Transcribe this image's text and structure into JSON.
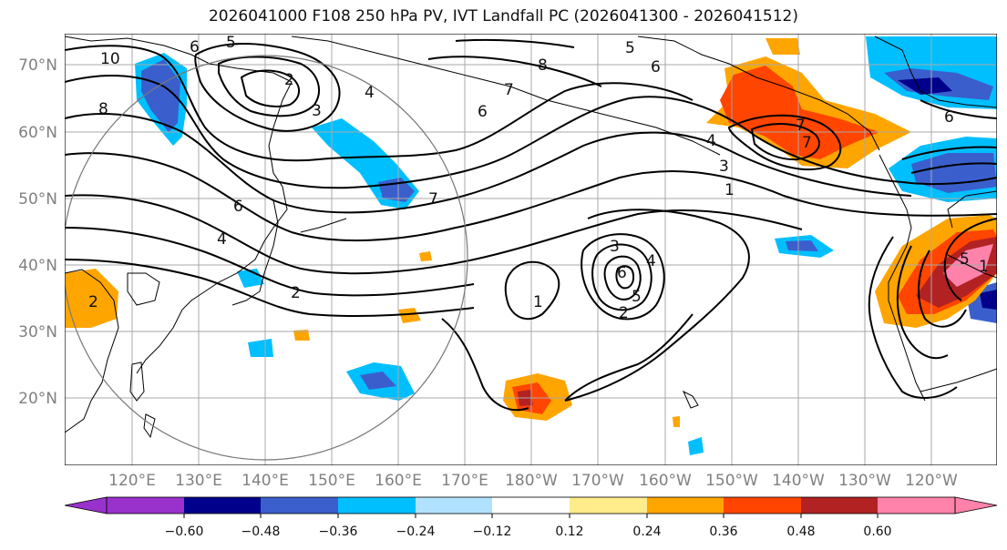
{
  "title": "2026041000 F108 250 hPa PV, IVT Landfall PC (2026041300 - 2026041512)",
  "map": {
    "lat_labels": [
      "70°N",
      "60°N",
      "50°N",
      "40°N",
      "30°N",
      "20°N"
    ],
    "lon_labels": [
      "120°E",
      "130°E",
      "140°E",
      "150°E",
      "160°E",
      "170°E",
      "180°W",
      "170°W",
      "160°W",
      "150°W",
      "140°W",
      "130°W",
      "120°W"
    ],
    "contour_labels": [
      "10",
      "8",
      "6",
      "4",
      "2",
      "3",
      "4",
      "5",
      "6",
      "7",
      "6",
      "5",
      "7",
      "8",
      "1",
      "6",
      "7",
      "2",
      "1",
      "2",
      "3",
      "4",
      "5",
      "6",
      "2",
      "6",
      "7",
      "1",
      "3",
      "4",
      "5"
    ]
  },
  "colorbar": {
    "ticks": [
      "−0.60",
      "−0.48",
      "−0.36",
      "−0.24",
      "−0.12",
      "0.12",
      "0.24",
      "0.36",
      "0.48",
      "0.60"
    ],
    "colors": [
      "#9932CC",
      "#00008B",
      "#3A5FCD",
      "#00BFFF",
      "#B0E2FF",
      "#FFFFFF",
      "#FFEC8B",
      "#FFA500",
      "#FF4500",
      "#B22222",
      "#FF82AB"
    ]
  },
  "fills": {
    "positive": [
      "#FFEC8B",
      "#FFA500",
      "#FF4500",
      "#B22222",
      "#FF82AB"
    ],
    "negative": [
      "#B0E2FF",
      "#00BFFF",
      "#3A5FCD",
      "#00008B"
    ]
  }
}
